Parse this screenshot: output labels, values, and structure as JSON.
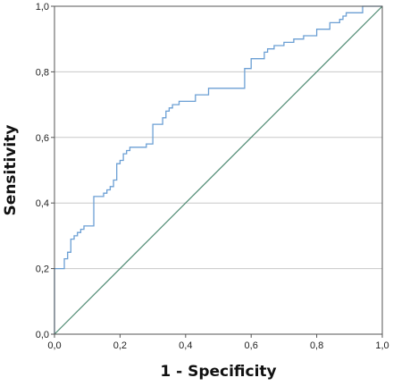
{
  "chart_data": {
    "type": "line",
    "xlabel": "1 - Specificity",
    "ylabel": "Sensitivity",
    "xlim": [
      0,
      1
    ],
    "ylim": [
      0,
      1
    ],
    "grid": "horizontal",
    "x_ticks": [
      "0,0",
      "0,2",
      "0,4",
      "0,6",
      "0,8",
      "1,0"
    ],
    "y_ticks": [
      "0,0",
      "0,2",
      "0,4",
      "0,6",
      "0,8",
      "1,0"
    ],
    "colors": {
      "roc": "#6b9fd4",
      "reference": "#4e8a72",
      "grid": "#c8c8c8",
      "frame": "#555555"
    },
    "series": [
      {
        "style": "step",
        "x": [
          0,
          0,
          0.01,
          0.01,
          0.03,
          0.03,
          0.04,
          0.04,
          0.05,
          0.05,
          0.06,
          0.06,
          0.07,
          0.07,
          0.08,
          0.08,
          0.09,
          0.09,
          0.12,
          0.12,
          0.15,
          0.15,
          0.16,
          0.16,
          0.17,
          0.17,
          0.18,
          0.18,
          0.19,
          0.19,
          0.2,
          0.2,
          0.21,
          0.21,
          0.22,
          0.22,
          0.23,
          0.23,
          0.24,
          0.24,
          0.25,
          0.25,
          0.28,
          0.28,
          0.3,
          0.3,
          0.33,
          0.33,
          0.34,
          0.34,
          0.35,
          0.35,
          0.36,
          0.36,
          0.38,
          0.38,
          0.43,
          0.43,
          0.47,
          0.47,
          0.57,
          0.57,
          0.58,
          0.58,
          0.6,
          0.6,
          0.64,
          0.64,
          0.65,
          0.65,
          0.67,
          0.67,
          0.7,
          0.7,
          0.73,
          0.73,
          0.76,
          0.76,
          0.8,
          0.8,
          0.84,
          0.84,
          0.87,
          0.87,
          0.88,
          0.88,
          0.89,
          0.89,
          0.91,
          0.91,
          0.94,
          0.94,
          1.0,
          1.0
        ],
        "y": [
          0,
          0.2,
          0.2,
          0.2,
          0.2,
          0.23,
          0.23,
          0.25,
          0.25,
          0.29,
          0.29,
          0.3,
          0.3,
          0.31,
          0.31,
          0.32,
          0.32,
          0.33,
          0.33,
          0.42,
          0.42,
          0.43,
          0.43,
          0.44,
          0.44,
          0.45,
          0.45,
          0.47,
          0.47,
          0.52,
          0.52,
          0.53,
          0.53,
          0.55,
          0.55,
          0.56,
          0.56,
          0.57,
          0.57,
          0.57,
          0.57,
          0.57,
          0.57,
          0.58,
          0.58,
          0.64,
          0.64,
          0.66,
          0.66,
          0.68,
          0.68,
          0.69,
          0.69,
          0.7,
          0.7,
          0.71,
          0.71,
          0.73,
          0.73,
          0.75,
          0.75,
          0.75,
          0.75,
          0.81,
          0.81,
          0.84,
          0.84,
          0.86,
          0.86,
          0.87,
          0.87,
          0.88,
          0.88,
          0.89,
          0.89,
          0.9,
          0.9,
          0.91,
          0.91,
          0.93,
          0.93,
          0.95,
          0.95,
          0.96,
          0.96,
          0.97,
          0.97,
          0.98,
          0.98,
          0.98,
          0.98,
          1.0,
          1.0,
          1.0
        ]
      },
      {
        "style": "reference",
        "x": [
          0,
          1
        ],
        "y": [
          0,
          1
        ]
      }
    ]
  }
}
